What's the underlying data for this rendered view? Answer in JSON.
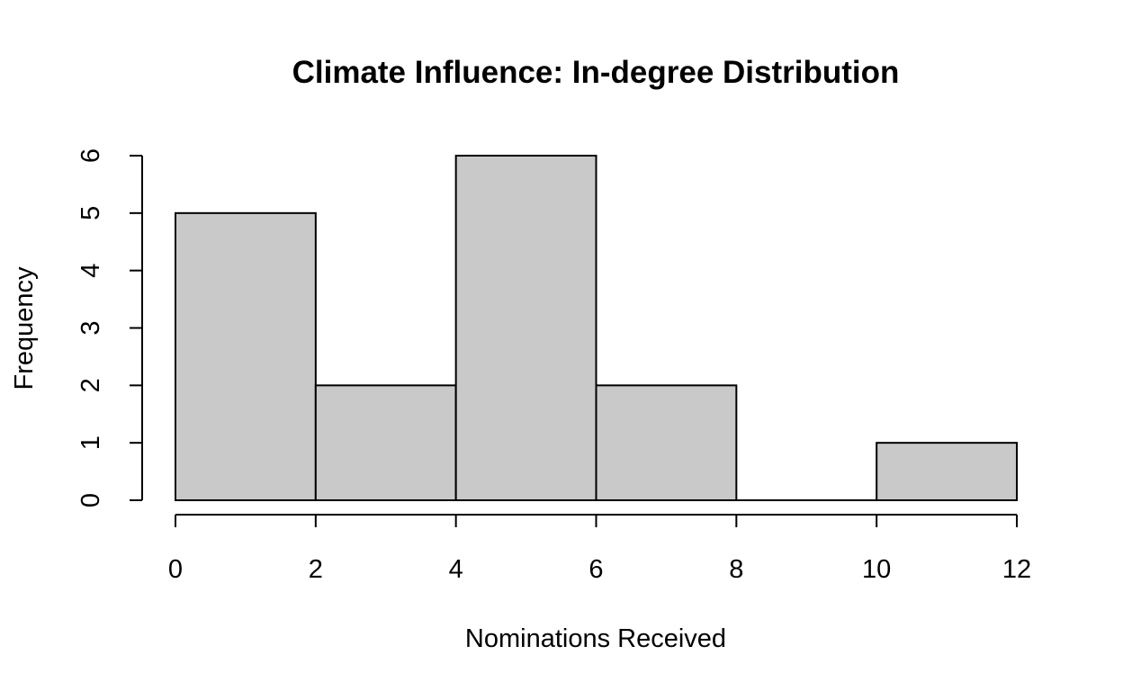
{
  "chart_data": {
    "type": "bar",
    "title": "Climate Influence: In-degree Distribution",
    "xlabel": "Nominations Received",
    "ylabel": "Frequency",
    "bins": [
      {
        "from": 0,
        "to": 2,
        "count": 5
      },
      {
        "from": 2,
        "to": 4,
        "count": 2
      },
      {
        "from": 4,
        "to": 6,
        "count": 6
      },
      {
        "from": 6,
        "to": 8,
        "count": 2
      },
      {
        "from": 8,
        "to": 10,
        "count": 0
      },
      {
        "from": 10,
        "to": 12,
        "count": 1
      }
    ],
    "xlim": [
      0,
      12
    ],
    "ylim": [
      0,
      6
    ],
    "x_ticks": [
      0,
      2,
      4,
      6,
      8,
      10,
      12
    ],
    "y_ticks": [
      0,
      1,
      2,
      3,
      4,
      5,
      6
    ],
    "grid": false,
    "colors": {
      "bar_fill": "#c9c9c9",
      "bar_stroke": "#000000",
      "axis": "#000000",
      "background": "#ffffff"
    }
  }
}
